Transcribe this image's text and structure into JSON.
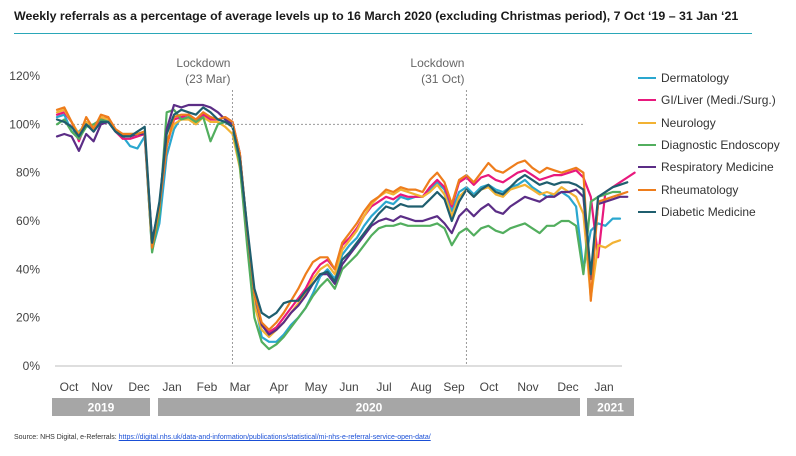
{
  "title": "Weekly referrals as a percentage of average levels up to 16 March 2020 (excluding Christmas period), 7 Oct ‘19 – 31 Jan ‘21",
  "source": {
    "prefix": "Source: NHS Digital, e-Referrals: ",
    "link_text": "https://digital.nhs.uk/data-and-information/publications/statistical/mi-nhs-e-referral-service-open-data/"
  },
  "chart_data": {
    "type": "line",
    "y_axis": {
      "ticks": [
        "0%",
        "20%",
        "40%",
        "60%",
        "80%",
        "100%",
        "120%"
      ],
      "ylim": [
        0,
        120
      ],
      "reference_line": 100
    },
    "x_axis": {
      "months": [
        "Oct",
        "Nov",
        "Dec",
        "Jan",
        "Feb",
        "Mar",
        "Apr",
        "May",
        "Jun",
        "Jul",
        "Aug",
        "Sep",
        "Oct",
        "Nov",
        "Dec",
        "Jan"
      ],
      "years": [
        "2019",
        "2020",
        "2021"
      ]
    },
    "annotations": [
      {
        "line1": "Lockdown",
        "line2": "(23 Mar)",
        "week": 24
      },
      {
        "line1": "Lockdown",
        "line2": "(31 Oct)",
        "week": 56
      }
    ],
    "legend_position": "right",
    "series": [
      {
        "name": "Dermatology",
        "color": "#2aa7cf",
        "values": [
          103,
          104,
          97,
          97,
          100,
          98,
          101,
          102,
          97,
          95,
          91,
          90,
          95,
          48,
          59,
          87,
          98,
          103,
          102,
          101,
          104,
          103,
          102,
          101,
          100,
          87,
          55,
          28,
          12,
          10,
          10,
          13,
          17,
          20,
          24,
          30,
          37,
          40,
          36,
          46,
          50,
          53,
          58,
          62,
          65,
          68,
          67,
          70,
          69,
          70,
          70,
          73,
          76,
          73,
          64,
          72,
          74,
          71,
          74,
          75,
          73,
          72,
          74,
          75,
          77,
          74,
          72,
          70,
          71,
          72,
          70,
          66,
          40,
          56,
          59,
          58,
          61,
          61
        ]
      },
      {
        "name": "GI/Liver (Medi./Surg.)",
        "color": "#e8197d",
        "values": [
          104,
          105,
          101,
          93,
          101,
          97,
          102,
          103,
          97,
          94,
          94,
          95,
          96,
          49,
          66,
          91,
          102,
          103,
          104,
          102,
          104,
          102,
          102,
          103,
          101,
          88,
          56,
          30,
          17,
          14,
          16,
          20,
          24,
          28,
          32,
          38,
          42,
          44,
          40,
          50,
          53,
          57,
          62,
          66,
          68,
          70,
          69,
          71,
          70,
          70,
          70,
          74,
          77,
          74,
          66,
          76,
          78,
          75,
          78,
          79,
          77,
          76,
          78,
          80,
          81,
          79,
          77,
          78,
          79,
          79,
          80,
          81,
          78,
          70,
          45,
          72,
          74,
          76,
          78,
          80
        ]
      },
      {
        "name": "Neurology",
        "color": "#f2b233",
        "values": [
          105,
          106,
          101,
          96,
          101,
          99,
          103,
          102,
          98,
          95,
          96,
          96,
          97,
          49,
          67,
          93,
          100,
          102,
          102,
          100,
          103,
          101,
          101,
          99,
          96,
          82,
          54,
          25,
          15,
          12,
          15,
          18,
          22,
          26,
          30,
          36,
          40,
          42,
          38,
          48,
          52,
          56,
          62,
          67,
          70,
          72,
          71,
          73,
          72,
          71,
          70,
          72,
          75,
          71,
          62,
          70,
          73,
          70,
          73,
          74,
          71,
          70,
          73,
          74,
          75,
          73,
          71,
          72,
          71,
          74,
          72,
          70,
          63,
          28,
          50,
          49,
          51,
          52
        ]
      },
      {
        "name": "Diagnostic Endoscopy",
        "color": "#52ae5e",
        "values": [
          100,
          102,
          97,
          94,
          99,
          100,
          102,
          101,
          97,
          96,
          96,
          96,
          97,
          47,
          63,
          105,
          106,
          102,
          103,
          101,
          103,
          93,
          100,
          101,
          99,
          83,
          50,
          20,
          10,
          7,
          9,
          12,
          16,
          20,
          24,
          29,
          33,
          36,
          32,
          40,
          43,
          46,
          50,
          54,
          57,
          58,
          58,
          59,
          58,
          58,
          58,
          58,
          59,
          57,
          50,
          55,
          57,
          54,
          57,
          58,
          56,
          55,
          57,
          58,
          59,
          57,
          55,
          58,
          58,
          60,
          60,
          58,
          38,
          68,
          70,
          71,
          72,
          72
        ]
      },
      {
        "name": "Respiratory Medicine",
        "color": "#5b2d86",
        "values": [
          95,
          96,
          95,
          89,
          96,
          93,
          100,
          101,
          97,
          95,
          95,
          96,
          96,
          52,
          66,
          98,
          108,
          107,
          108,
          108,
          108,
          107,
          105,
          102,
          100,
          88,
          57,
          30,
          17,
          13,
          15,
          18,
          22,
          25,
          29,
          34,
          38,
          38,
          34,
          42,
          46,
          50,
          54,
          58,
          60,
          61,
          60,
          62,
          61,
          60,
          60,
          61,
          62,
          59,
          55,
          62,
          65,
          62,
          65,
          67,
          64,
          63,
          66,
          68,
          70,
          69,
          68,
          70,
          70,
          72,
          72,
          73,
          70,
          36,
          67,
          68,
          69,
          70,
          70
        ]
      },
      {
        "name": "Rheumatology",
        "color": "#ee7d1c",
        "values": [
          106,
          107,
          101,
          95,
          103,
          98,
          104,
          103,
          98,
          96,
          96,
          96,
          97,
          49,
          66,
          91,
          103,
          104,
          104,
          102,
          105,
          103,
          102,
          103,
          101,
          88,
          57,
          30,
          18,
          15,
          18,
          22,
          27,
          32,
          38,
          43,
          45,
          45,
          40,
          51,
          55,
          59,
          64,
          68,
          70,
          73,
          72,
          74,
          73,
          73,
          72,
          77,
          80,
          76,
          67,
          77,
          79,
          76,
          80,
          84,
          81,
          80,
          82,
          84,
          85,
          82,
          80,
          82,
          81,
          80,
          81,
          82,
          80,
          27,
          68,
          69,
          70,
          71,
          72
        ]
      },
      {
        "name": "Diabetic Medicine",
        "color": "#1f5e6e",
        "values": [
          102,
          101,
          99,
          95,
          100,
          97,
          101,
          101,
          97,
          95,
          95,
          97,
          99,
          51,
          68,
          96,
          104,
          106,
          105,
          104,
          107,
          105,
          102,
          101,
          99,
          86,
          58,
          32,
          22,
          20,
          22,
          26,
          27,
          27,
          31,
          34,
          38,
          39,
          35,
          44,
          47,
          51,
          55,
          59,
          63,
          66,
          65,
          67,
          66,
          66,
          66,
          69,
          72,
          69,
          60,
          68,
          73,
          70,
          73,
          75,
          72,
          71,
          74,
          77,
          79,
          77,
          75,
          76,
          75,
          76,
          76,
          75,
          73,
          38,
          70,
          72,
          74,
          75,
          76
        ]
      }
    ]
  }
}
